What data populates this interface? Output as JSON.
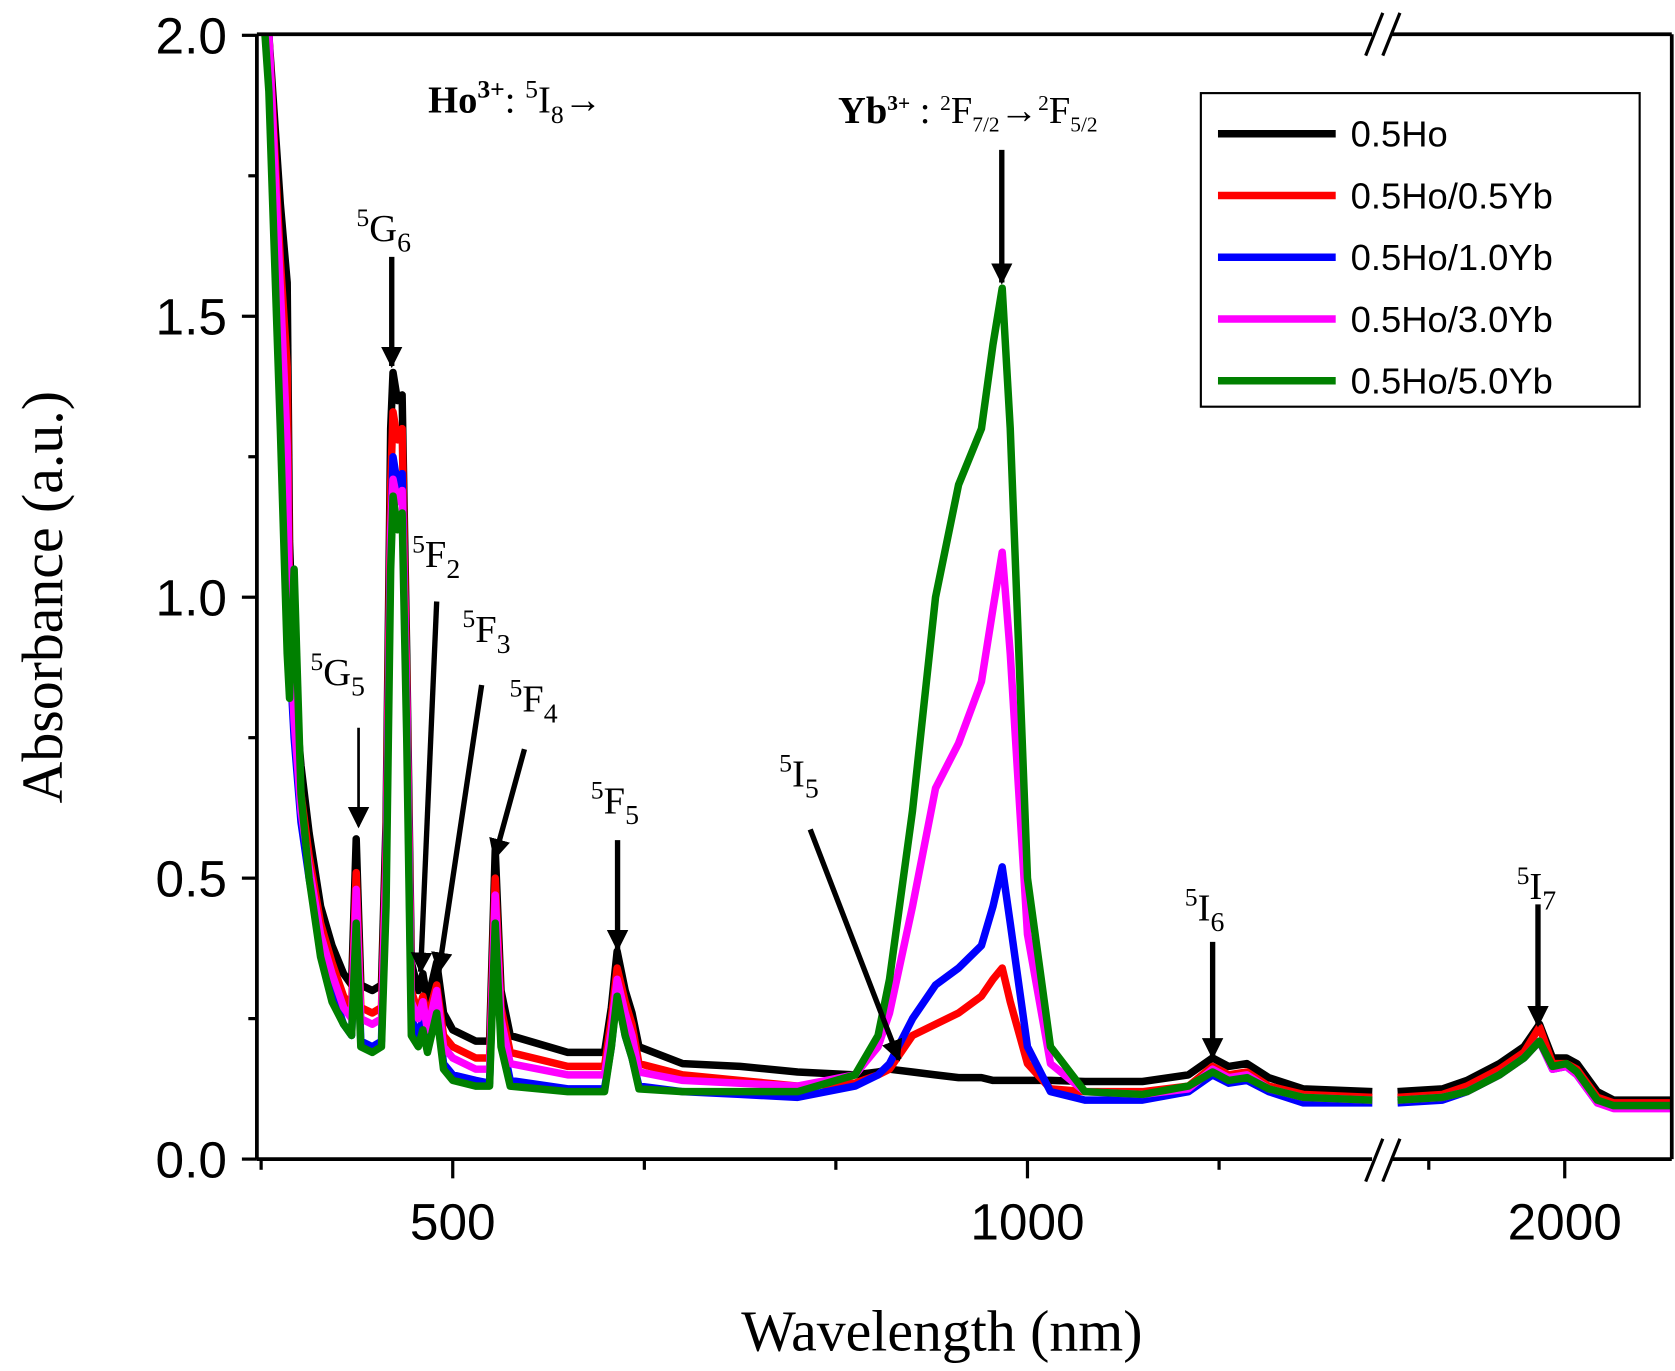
{
  "chart_data": {
    "type": "line",
    "title": "",
    "xlabel": "Wavelength (nm)",
    "ylabel": "Absorbance (a.u.)",
    "ylim": [
      0,
      2.0
    ],
    "x_segments": [
      [
        330,
        1300
      ],
      [
        1795,
        2130
      ]
    ],
    "axis_break": true,
    "grid": false,
    "legend_position": "top-right",
    "y_ticks": [
      "0.0",
      "0.5",
      "1.0",
      "1.5",
      "2.0"
    ],
    "x_ticks": [
      "500",
      "1000",
      "2000"
    ],
    "x": [
      330,
      340,
      350,
      356,
      358,
      362,
      368,
      375,
      385,
      395,
      405,
      412,
      416,
      420,
      430,
      438,
      442,
      446,
      448,
      452,
      456,
      460,
      464,
      470,
      474,
      478,
      486,
      492,
      500,
      520,
      532,
      537,
      542,
      550,
      600,
      632,
      638,
      643,
      650,
      656,
      662,
      700,
      750,
      800,
      850,
      870,
      880,
      900,
      920,
      940,
      960,
      970,
      978,
      985,
      1000,
      1020,
      1050,
      1100,
      1140,
      1161,
      1175,
      1191,
      1210,
      1240,
      1300,
      1795,
      1850,
      1880,
      1920,
      1950,
      1969,
      1985,
      2002,
      2015,
      2040,
      2060,
      2130
    ],
    "series": [
      {
        "name": "0.5Ho",
        "color": "#000000",
        "values": [
          2.2,
          2.0,
          1.7,
          1.56,
          1.1,
          0.85,
          0.7,
          0.58,
          0.45,
          0.38,
          0.33,
          0.31,
          0.57,
          0.31,
          0.3,
          0.31,
          0.6,
          1.3,
          1.4,
          1.35,
          1.36,
          0.9,
          0.35,
          0.3,
          0.33,
          0.28,
          0.35,
          0.26,
          0.23,
          0.21,
          0.21,
          0.55,
          0.3,
          0.22,
          0.19,
          0.19,
          0.27,
          0.37,
          0.3,
          0.26,
          0.2,
          0.17,
          0.165,
          0.155,
          0.15,
          0.155,
          0.16,
          0.155,
          0.15,
          0.145,
          0.145,
          0.14,
          0.14,
          0.14,
          0.14,
          0.14,
          0.138,
          0.138,
          0.15,
          0.18,
          0.165,
          0.17,
          0.145,
          0.125,
          0.12,
          0.12,
          0.125,
          0.14,
          0.17,
          0.2,
          0.24,
          0.18,
          0.18,
          0.17,
          0.12,
          0.105,
          0.105
        ]
      },
      {
        "name": "0.5Ho/0.5Yb",
        "color": "#ff0000",
        "values": [
          2.2,
          2.0,
          1.6,
          1.41,
          1.0,
          0.8,
          0.65,
          0.54,
          0.42,
          0.35,
          0.29,
          0.27,
          0.51,
          0.27,
          0.26,
          0.27,
          0.55,
          1.2,
          1.33,
          1.28,
          1.3,
          0.85,
          0.3,
          0.26,
          0.29,
          0.25,
          0.31,
          0.22,
          0.2,
          0.18,
          0.18,
          0.5,
          0.27,
          0.19,
          0.165,
          0.165,
          0.25,
          0.34,
          0.28,
          0.24,
          0.17,
          0.15,
          0.14,
          0.13,
          0.135,
          0.15,
          0.16,
          0.22,
          0.24,
          0.26,
          0.29,
          0.32,
          0.34,
          0.28,
          0.17,
          0.125,
          0.12,
          0.12,
          0.13,
          0.165,
          0.15,
          0.155,
          0.13,
          0.115,
          0.11,
          0.11,
          0.115,
          0.13,
          0.16,
          0.19,
          0.235,
          0.17,
          0.17,
          0.16,
          0.11,
          0.1,
          0.1
        ]
      },
      {
        "name": "0.5Ho/1.0Yb",
        "color": "#0000ff",
        "values": [
          2.2,
          2.0,
          1.5,
          1.1,
          0.9,
          0.75,
          0.6,
          0.5,
          0.38,
          0.3,
          0.24,
          0.22,
          0.45,
          0.21,
          0.2,
          0.21,
          0.5,
          1.1,
          1.25,
          1.2,
          1.22,
          0.8,
          0.25,
          0.22,
          0.25,
          0.2,
          0.27,
          0.17,
          0.15,
          0.14,
          0.135,
          0.45,
          0.22,
          0.14,
          0.125,
          0.125,
          0.2,
          0.3,
          0.22,
          0.18,
          0.13,
          0.12,
          0.115,
          0.11,
          0.13,
          0.15,
          0.17,
          0.25,
          0.31,
          0.34,
          0.38,
          0.45,
          0.52,
          0.42,
          0.2,
          0.12,
          0.105,
          0.105,
          0.12,
          0.15,
          0.135,
          0.14,
          0.12,
          0.1,
          0.1,
          0.1,
          0.105,
          0.12,
          0.15,
          0.18,
          0.21,
          0.16,
          0.165,
          0.15,
          0.1,
          0.095,
          0.095
        ]
      },
      {
        "name": "0.5Ho/3.0Yb",
        "color": "#ff00ff",
        "values": [
          2.2,
          2.0,
          1.55,
          1.27,
          0.95,
          0.78,
          0.62,
          0.52,
          0.4,
          0.33,
          0.27,
          0.25,
          0.48,
          0.25,
          0.24,
          0.25,
          0.52,
          1.12,
          1.21,
          1.17,
          1.19,
          0.82,
          0.28,
          0.25,
          0.28,
          0.23,
          0.3,
          0.2,
          0.18,
          0.16,
          0.16,
          0.47,
          0.25,
          0.17,
          0.15,
          0.15,
          0.23,
          0.32,
          0.26,
          0.22,
          0.155,
          0.14,
          0.135,
          0.13,
          0.15,
          0.2,
          0.26,
          0.45,
          0.66,
          0.74,
          0.85,
          0.98,
          1.08,
          0.9,
          0.4,
          0.17,
          0.12,
          0.115,
          0.125,
          0.16,
          0.145,
          0.15,
          0.125,
          0.11,
          0.105,
          0.105,
          0.11,
          0.12,
          0.15,
          0.18,
          0.21,
          0.16,
          0.165,
          0.15,
          0.1,
          0.09,
          0.09
        ]
      },
      {
        "name": "0.5Ho/5.0Yb",
        "color": "#008000",
        "values": [
          2.2,
          1.9,
          1.3,
          0.9,
          0.82,
          1.05,
          0.65,
          0.5,
          0.36,
          0.28,
          0.24,
          0.22,
          0.42,
          0.2,
          0.19,
          0.2,
          0.45,
          1.05,
          1.18,
          1.12,
          1.15,
          0.75,
          0.22,
          0.2,
          0.23,
          0.19,
          0.26,
          0.16,
          0.14,
          0.13,
          0.13,
          0.42,
          0.2,
          0.13,
          0.12,
          0.12,
          0.2,
          0.29,
          0.22,
          0.18,
          0.125,
          0.12,
          0.12,
          0.12,
          0.15,
          0.22,
          0.32,
          0.62,
          1.0,
          1.2,
          1.3,
          1.45,
          1.55,
          1.3,
          0.5,
          0.2,
          0.12,
          0.115,
          0.13,
          0.155,
          0.14,
          0.145,
          0.125,
          0.11,
          0.105,
          0.105,
          0.11,
          0.12,
          0.15,
          0.18,
          0.21,
          0.165,
          0.17,
          0.155,
          0.105,
          0.095,
          0.095
        ]
      }
    ],
    "annotations": {
      "ho_header": {
        "ion": "Ho",
        "ion_sup": "3+",
        "rest": ": ",
        "level_sup": "5",
        "level": "I",
        "level_sub": "8",
        "arrow": "→"
      },
      "yb_header": {
        "ion": "Yb",
        "ion_sup": "3+",
        "rest": " : ",
        "a_sup": "2",
        "a": "F",
        "a_sub": "7/2",
        "arrow": "→",
        "b_sup": "2",
        "b": "F",
        "b_sub": "5/2"
      },
      "levels": [
        {
          "sup": "5",
          "main": "G",
          "sub": "6"
        },
        {
          "sup": "5",
          "main": "G",
          "sub": "5"
        },
        {
          "sup": "5",
          "main": "F",
          "sub": "2"
        },
        {
          "sup": "5",
          "main": "F",
          "sub": "3"
        },
        {
          "sup": "5",
          "main": "F",
          "sub": "4"
        },
        {
          "sup": "5",
          "main": "F",
          "sub": "5"
        },
        {
          "sup": "5",
          "main": "I",
          "sub": "5"
        },
        {
          "sup": "5",
          "main": "I",
          "sub": "6"
        },
        {
          "sup": "5",
          "main": "I",
          "sub": "7"
        }
      ]
    }
  }
}
